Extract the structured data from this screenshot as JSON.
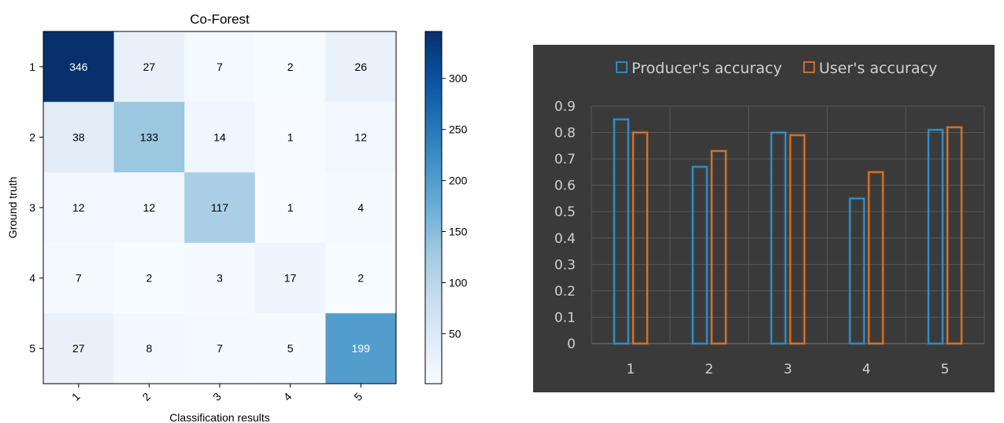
{
  "chart_data": [
    {
      "type": "heatmap",
      "title": "Co-Forest",
      "xlabel": "Classification results",
      "ylabel": "Ground truth",
      "x_categories": [
        "1",
        "2",
        "3",
        "4",
        "5"
      ],
      "y_categories": [
        "1",
        "2",
        "3",
        "4",
        "5"
      ],
      "values": [
        [
          346,
          27,
          7,
          2,
          26
        ],
        [
          38,
          133,
          14,
          1,
          12
        ],
        [
          12,
          12,
          117,
          1,
          4
        ],
        [
          7,
          2,
          3,
          17,
          2
        ],
        [
          27,
          8,
          7,
          5,
          199
        ]
      ],
      "colorbar": {
        "ticks": [
          50,
          100,
          150,
          200,
          250,
          300
        ],
        "range": [
          1,
          346
        ],
        "colormap": "Blues"
      },
      "colors": {
        "low": "#f7fbff",
        "high": "#08306b"
      }
    },
    {
      "type": "bar",
      "categories": [
        "1",
        "2",
        "3",
        "4",
        "5"
      ],
      "series": [
        {
          "name": "Producer's accuracy",
          "values": [
            0.85,
            0.67,
            0.8,
            0.55,
            0.81
          ],
          "color": "#2e9ae0"
        },
        {
          "name": "User's accuracy",
          "values": [
            0.8,
            0.73,
            0.79,
            0.65,
            0.82
          ],
          "color": "#f07a23"
        }
      ],
      "ylim": [
        0,
        0.9
      ],
      "yticks": [
        "0",
        "0.1",
        "0.2",
        "0.3",
        "0.4",
        "0.5",
        "0.6",
        "0.7",
        "0.8",
        "0.9"
      ],
      "grid": true,
      "legend": "top-center",
      "background": "#3a3a3a",
      "text_color": "#d0d0d0"
    }
  ]
}
